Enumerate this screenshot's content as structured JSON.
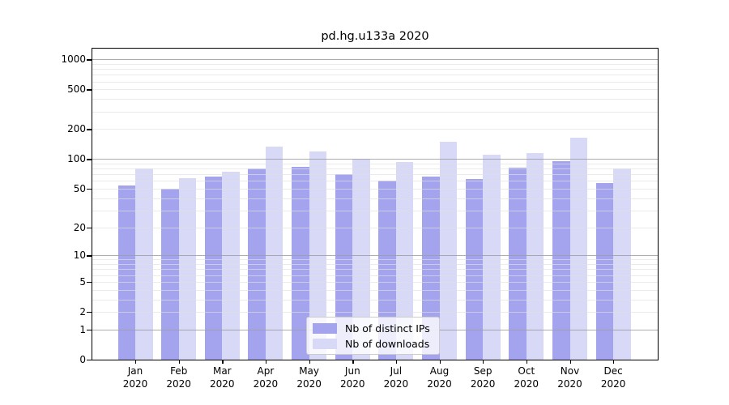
{
  "title": "pd.hg.u133a 2020",
  "legend": {
    "items": [
      {
        "label": "Nb of distinct IPs",
        "color": "#a3a3ee"
      },
      {
        "label": "Nb of downloads",
        "color": "#d8d8f7"
      }
    ]
  },
  "chart_data": {
    "type": "bar",
    "title": "pd.hg.u133a 2020",
    "categories": [
      "Jan 2020",
      "Feb 2020",
      "Mar 2020",
      "Apr 2020",
      "May 2020",
      "Jun 2020",
      "Jul 2020",
      "Aug 2020",
      "Sep 2020",
      "Oct 2020",
      "Nov 2020",
      "Dec 2020"
    ],
    "series": [
      {
        "name": "Nb of distinct IPs",
        "color": "#a3a3ee",
        "values": [
          54,
          50,
          67,
          80,
          83,
          70,
          60,
          67,
          63,
          82,
          96,
          57
        ]
      },
      {
        "name": "Nb of downloads",
        "color": "#d8d8f7",
        "values": [
          80,
          64,
          75,
          134,
          120,
          100,
          93,
          149,
          110,
          114,
          165,
          81
        ]
      }
    ],
    "xlabel": "",
    "ylabel": "",
    "yscale": "log1p",
    "ylim": [
      0,
      1281
    ],
    "yticks": [
      0,
      1,
      2,
      5,
      10,
      20,
      50,
      100,
      200,
      500,
      1000
    ],
    "major_grid_values": [
      1,
      10,
      100,
      1000
    ],
    "minor_grid_values": [
      2,
      3,
      4,
      5,
      6,
      7,
      8,
      9,
      20,
      30,
      40,
      50,
      60,
      70,
      80,
      90,
      200,
      300,
      400,
      500,
      600,
      700,
      800,
      900
    ],
    "grid": "on",
    "legend_position": "lower center"
  },
  "colors": {
    "grid_major": "#9d9da4",
    "grid_minor": "#e0e0e0",
    "spine": "#000000",
    "background": "#ffffff"
  }
}
